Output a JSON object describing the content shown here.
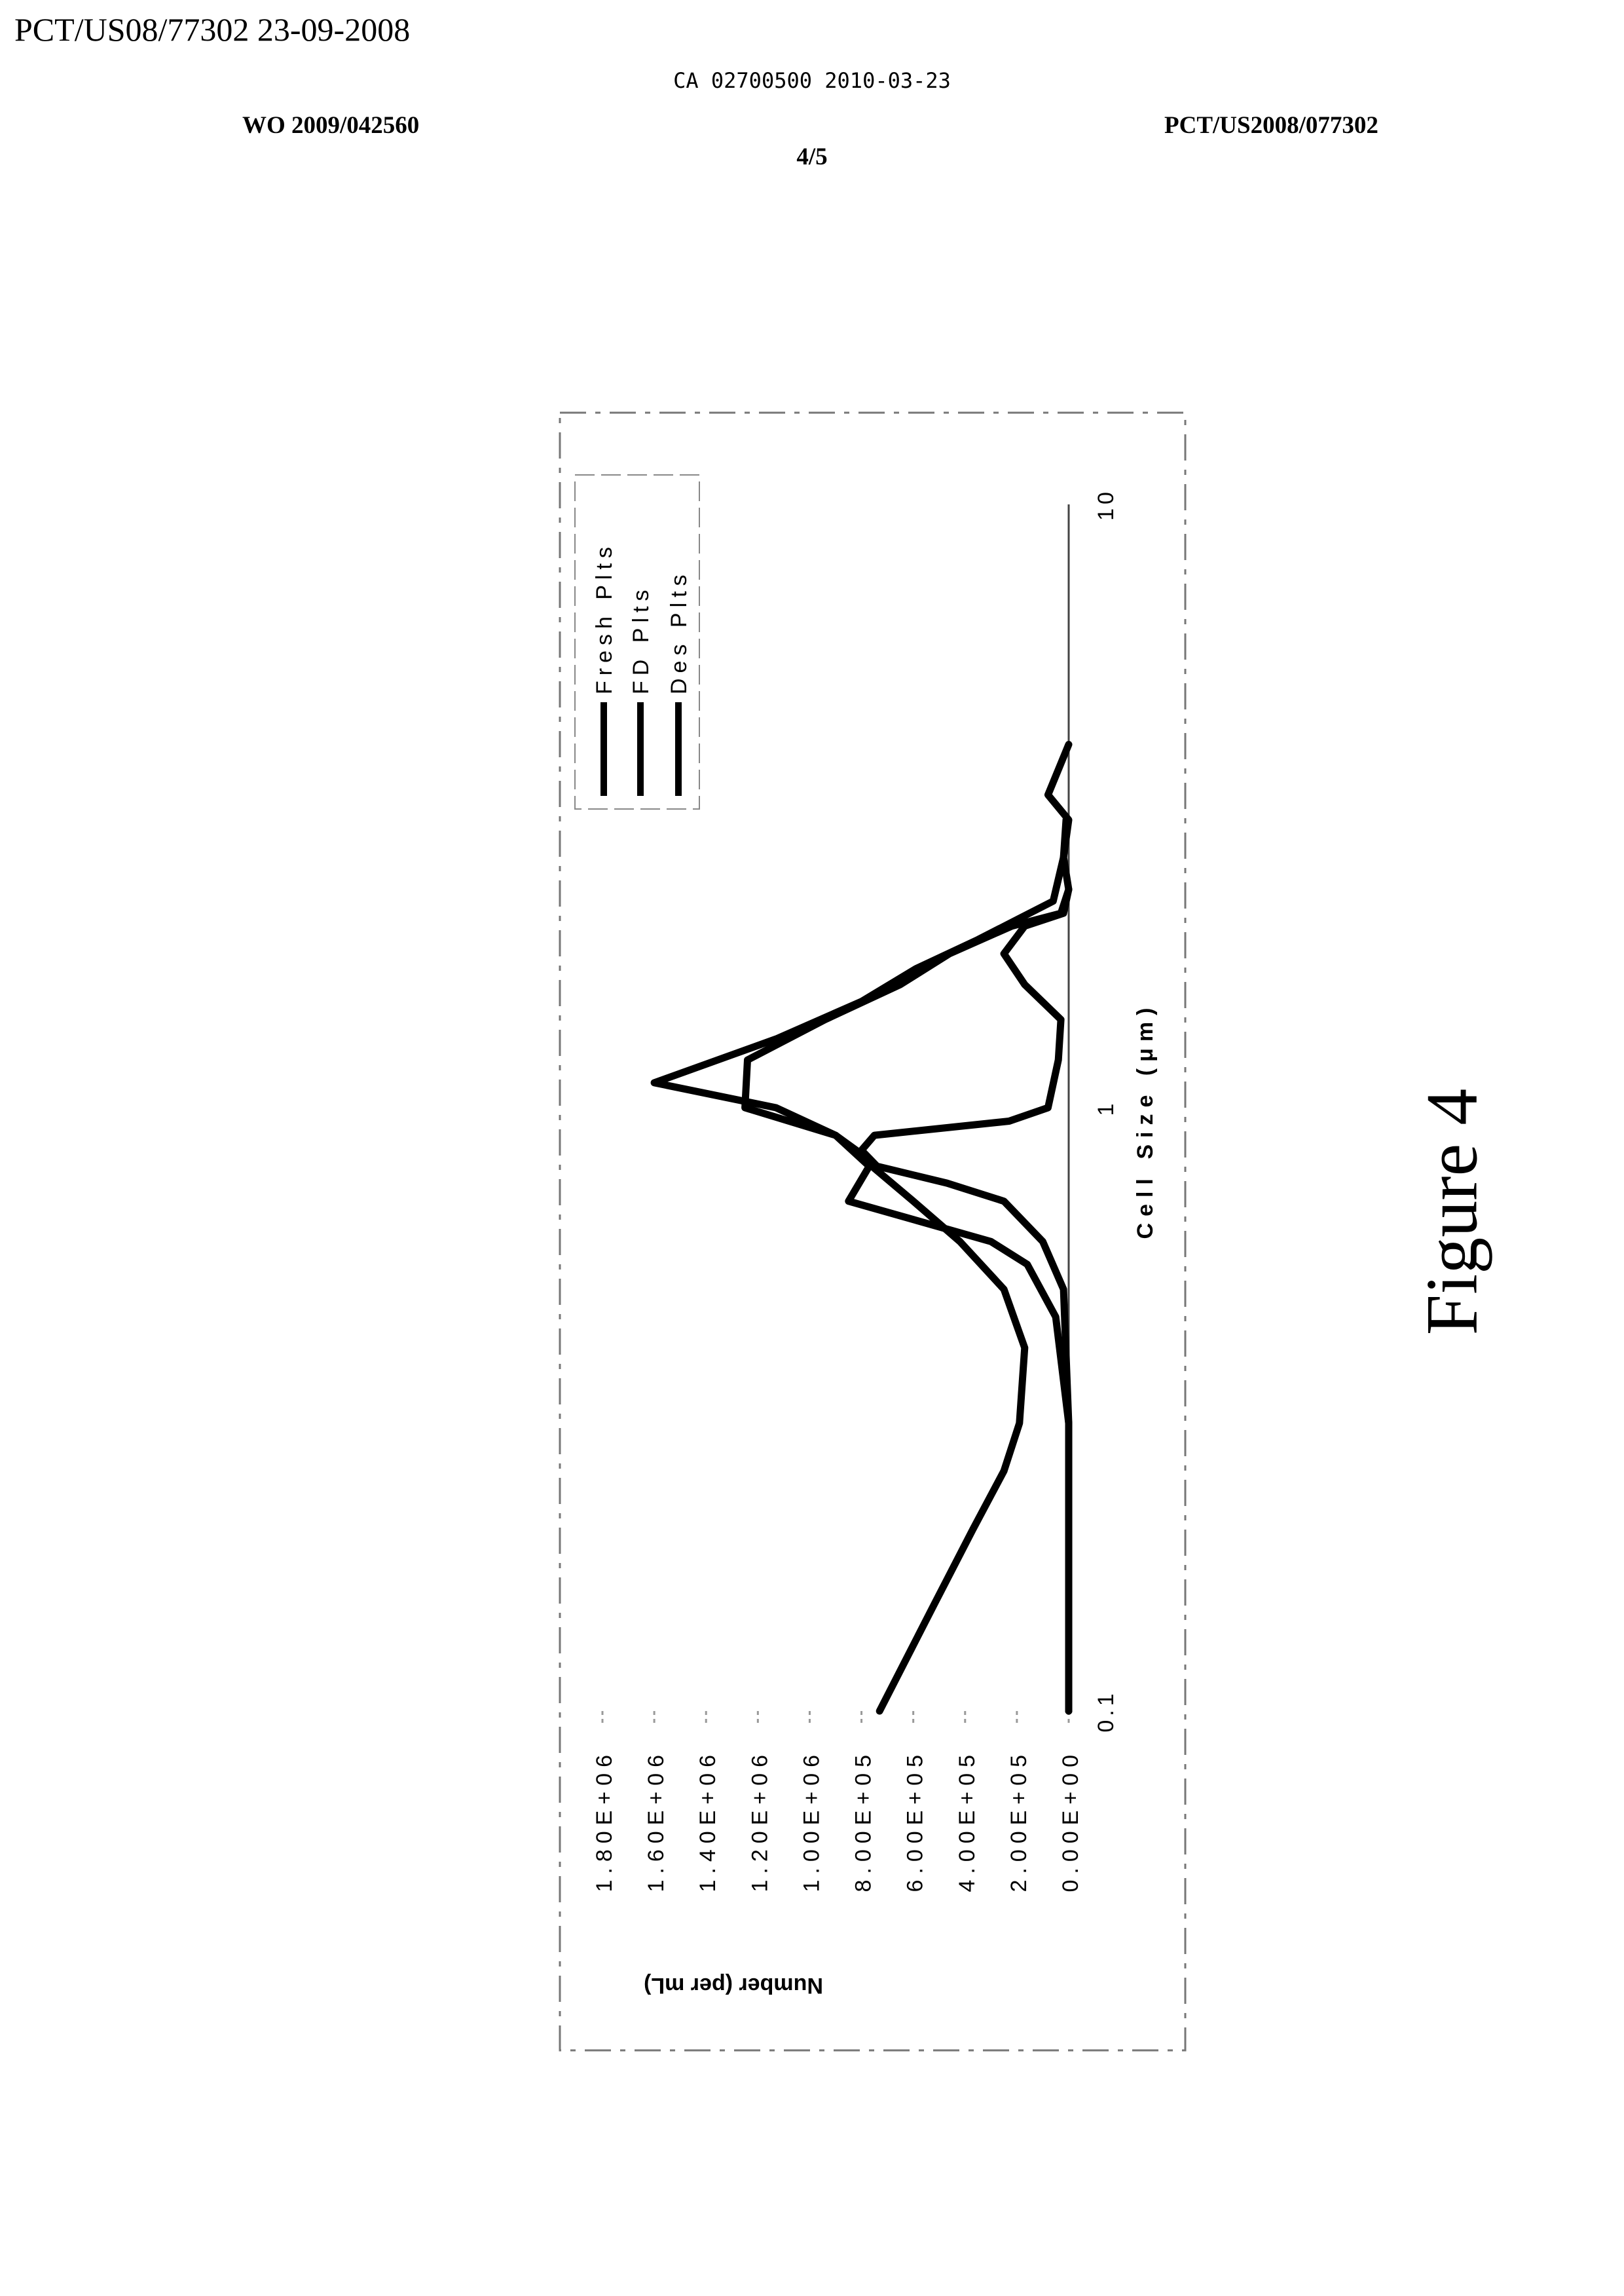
{
  "header": {
    "pct_stamp": "PCT/US08/77302 23-09-2008",
    "ca_line": "CA 02700500 2010-03-23",
    "wo_number": "WO 2009/042560",
    "pct_number": "PCT/US2008/077302",
    "page": "4/5"
  },
  "figure_caption": "Figure 4",
  "chart_data": {
    "type": "line",
    "title": "",
    "xlabel": "Cell Size (μm)",
    "ylabel": "Number (per mL)",
    "x_scale": "log",
    "xlim": [
      0.1,
      10
    ],
    "ylim": [
      0,
      1800000
    ],
    "x_ticks": [
      "0.1",
      "1",
      "10"
    ],
    "y_ticks": [
      "0.00E+00",
      "2.00E+05",
      "4.00E+05",
      "6.00E+05",
      "8.00E+05",
      "1.00E+06",
      "1.20E+06",
      "1.40E+06",
      "1.60E+06",
      "1.80E+06"
    ],
    "y_tick_values": [
      0,
      200000,
      400000,
      600000,
      800000,
      1000000,
      1200000,
      1400000,
      1600000,
      1800000
    ],
    "legend_position": "top-right",
    "orientation": "rotated 90 degrees counter-clockwise on the page",
    "line_color": "#000000",
    "series": [
      {
        "name": "Fresh Plts",
        "x": [
          0.1,
          0.15,
          0.2,
          0.25,
          0.3,
          0.4,
          0.5,
          0.6,
          0.7,
          0.8,
          0.85,
          0.9,
          1.0,
          1.1,
          1.3,
          1.5,
          1.7,
          1.9,
          2.2,
          2.6,
          3.0
        ],
        "y": [
          730000,
          520000,
          370000,
          250000,
          190000,
          170000,
          250000,
          420000,
          600000,
          760000,
          820000,
          900000,
          1130000,
          1600000,
          1130000,
          800000,
          590000,
          350000,
          60000,
          20000,
          10000
        ]
      },
      {
        "name": "FD Plts",
        "x": [
          0.1,
          0.3,
          0.5,
          0.6,
          0.7,
          0.75,
          0.8,
          0.85,
          0.9,
          0.95,
          1.0,
          1.2,
          1.4,
          1.6,
          1.8,
          2.0,
          2.1,
          2.3
        ],
        "y": [
          0,
          0,
          20000,
          100000,
          250000,
          470000,
          740000,
          800000,
          750000,
          230000,
          80000,
          40000,
          30000,
          170000,
          250000,
          170000,
          20000,
          0
        ]
      },
      {
        "name": "Des Plts",
        "x": [
          0.1,
          0.3,
          0.45,
          0.55,
          0.6,
          0.7,
          0.8,
          0.9,
          1.0,
          1.2,
          1.4,
          1.6,
          1.8,
          2.0,
          2.1,
          2.3,
          2.6,
          3.0,
          3.3,
          4.0
        ],
        "y": [
          0,
          0,
          50000,
          160000,
          300000,
          850000,
          770000,
          900000,
          1250000,
          1240000,
          940000,
          650000,
          460000,
          220000,
          30000,
          0,
          20000,
          0,
          80000,
          0
        ]
      }
    ]
  }
}
